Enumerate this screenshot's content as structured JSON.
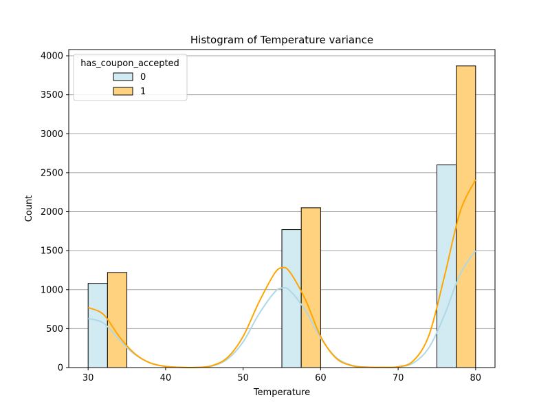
{
  "chart_data": {
    "type": "bar",
    "title": "Histogram of Temperature variance",
    "xlabel": "Temperature",
    "ylabel": "Count",
    "xlim": [
      27.5,
      82.5
    ],
    "ylim": [
      0,
      4080
    ],
    "xticks": [
      30,
      40,
      50,
      60,
      70,
      80
    ],
    "yticks": [
      0,
      500,
      1000,
      1500,
      2000,
      2500,
      3000,
      3500,
      4000
    ],
    "grid": "horizontal",
    "legend": {
      "title": "has_coupon_accepted",
      "position": "top-left",
      "entries": [
        "0",
        "1"
      ]
    },
    "bin_width": 2.5,
    "series": [
      {
        "name": "0",
        "color": "#add8e6",
        "bars": [
          {
            "x": 30,
            "value": 1080
          },
          {
            "x": 55,
            "value": 1770
          },
          {
            "x": 75,
            "value": 2600
          }
        ],
        "kde": [
          [
            30,
            630
          ],
          [
            32,
            570
          ],
          [
            34,
            360
          ],
          [
            36,
            170
          ],
          [
            38,
            60
          ],
          [
            40,
            15
          ],
          [
            42,
            3
          ],
          [
            44,
            2
          ],
          [
            46,
            20
          ],
          [
            48,
            110
          ],
          [
            50,
            330
          ],
          [
            52,
            680
          ],
          [
            54,
            960
          ],
          [
            55,
            1020
          ],
          [
            56,
            990
          ],
          [
            58,
            740
          ],
          [
            60,
            380
          ],
          [
            62,
            130
          ],
          [
            64,
            30
          ],
          [
            66,
            5
          ],
          [
            68,
            2
          ],
          [
            70,
            10
          ],
          [
            72,
            60
          ],
          [
            74,
            260
          ],
          [
            76,
            680
          ],
          [
            78,
            1200
          ],
          [
            80,
            1500
          ]
        ]
      },
      {
        "name": "1",
        "color": "#ffa500",
        "bars": [
          {
            "x": 32.5,
            "value": 1220
          },
          {
            "x": 57.5,
            "value": 2050
          },
          {
            "x": 77.5,
            "value": 3870
          }
        ],
        "kde": [
          [
            30,
            770
          ],
          [
            32,
            680
          ],
          [
            34,
            400
          ],
          [
            36,
            180
          ],
          [
            38,
            60
          ],
          [
            40,
            15
          ],
          [
            42,
            3
          ],
          [
            44,
            2
          ],
          [
            46,
            25
          ],
          [
            48,
            130
          ],
          [
            50,
            400
          ],
          [
            52,
            830
          ],
          [
            54,
            1200
          ],
          [
            55,
            1280
          ],
          [
            56,
            1230
          ],
          [
            58,
            880
          ],
          [
            60,
            400
          ],
          [
            62,
            120
          ],
          [
            64,
            25
          ],
          [
            66,
            5
          ],
          [
            68,
            3
          ],
          [
            70,
            10
          ],
          [
            72,
            90
          ],
          [
            74,
            420
          ],
          [
            76,
            1180
          ],
          [
            78,
            2000
          ],
          [
            80,
            2410
          ]
        ]
      }
    ]
  }
}
